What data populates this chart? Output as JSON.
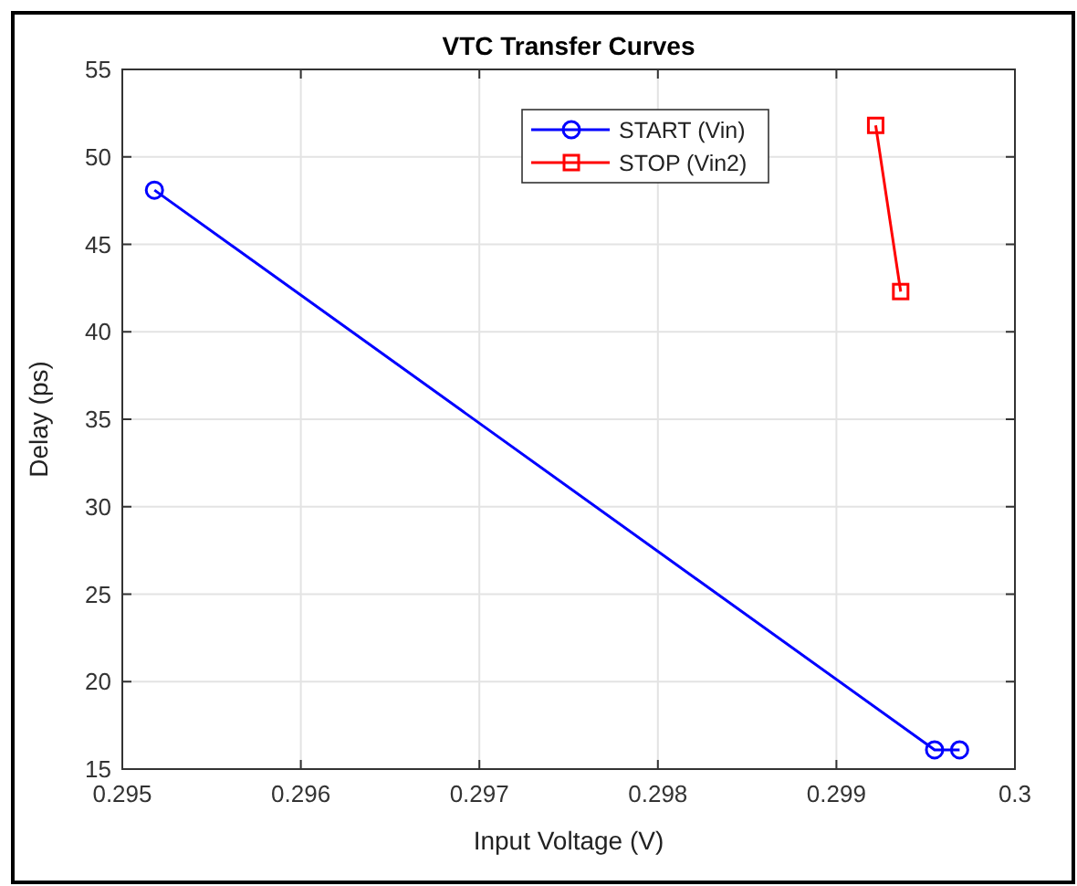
{
  "chart_data": {
    "type": "line",
    "title": "VTC Transfer Curves",
    "xlabel": "Input Voltage (V)",
    "ylabel": "Delay (ps)",
    "xlim": [
      0.295,
      0.3
    ],
    "xticks": [
      0.295,
      0.296,
      0.297,
      0.298,
      0.299,
      0.3
    ],
    "ylim": [
      15,
      55
    ],
    "yticks": [
      15,
      20,
      25,
      30,
      35,
      40,
      45,
      50,
      55
    ],
    "grid": true,
    "legend": "top right",
    "line_style": "solid",
    "series": [
      {
        "name": "START (Vin)",
        "color": "#0000ff",
        "marker": "circle",
        "x": [
          0.29518,
          0.29955,
          0.29969
        ],
        "values": [
          48.1,
          16.1,
          16.1
        ]
      },
      {
        "name": "STOP (Vin2)",
        "color": "#ff0000",
        "marker": "square",
        "x": [
          0.29922,
          0.29936
        ],
        "values": [
          51.8,
          42.3
        ]
      }
    ]
  }
}
